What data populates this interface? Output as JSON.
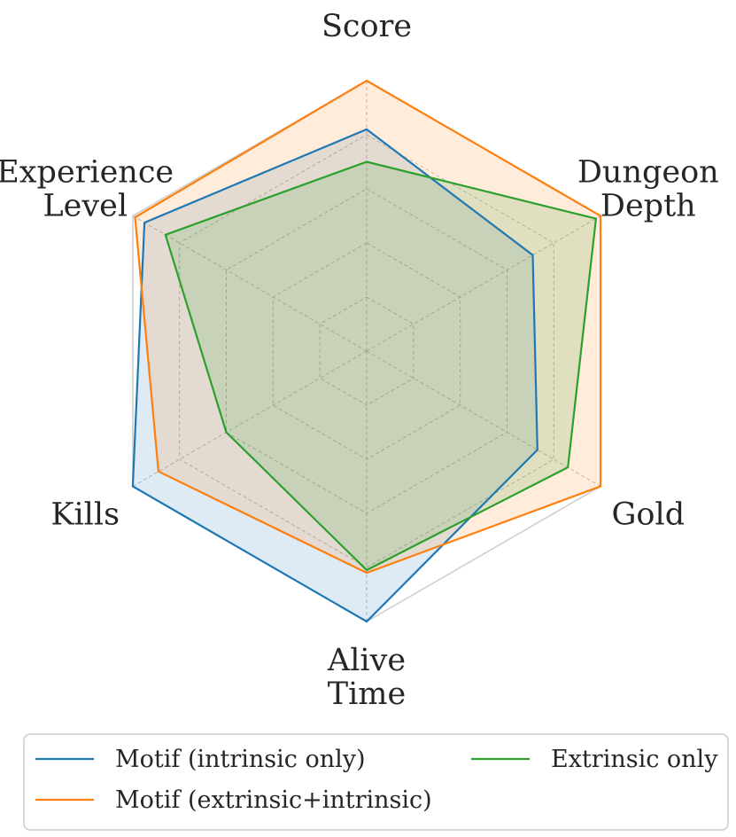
{
  "chart_data": {
    "type": "radar",
    "axes": [
      [
        "Score"
      ],
      [
        "Dungeon",
        "Depth"
      ],
      [
        "Gold"
      ],
      [
        "Alive",
        "Time"
      ],
      [
        "Kills"
      ],
      [
        "Experience",
        "Level"
      ]
    ],
    "rmax": 1.0,
    "grid_levels": [
      0.2,
      0.4,
      0.6,
      0.8,
      1.0
    ],
    "grid": true,
    "series": [
      {
        "name": "Motif (intrinsic only)",
        "color": "#1f77b4",
        "values": [
          0.82,
          0.71,
          0.73,
          1.0,
          1.0,
          0.95
        ]
      },
      {
        "name": "Motif (extrinsic+intrinsic)",
        "color": "#ff7f0e",
        "values": [
          1.0,
          1.0,
          1.0,
          0.82,
          0.89,
          0.99
        ]
      },
      {
        "name": "Extrinsic only",
        "color": "#2ca02c",
        "values": [
          0.7,
          0.98,
          0.86,
          0.81,
          0.6,
          0.86
        ]
      }
    ],
    "legend_position": "bottom"
  }
}
